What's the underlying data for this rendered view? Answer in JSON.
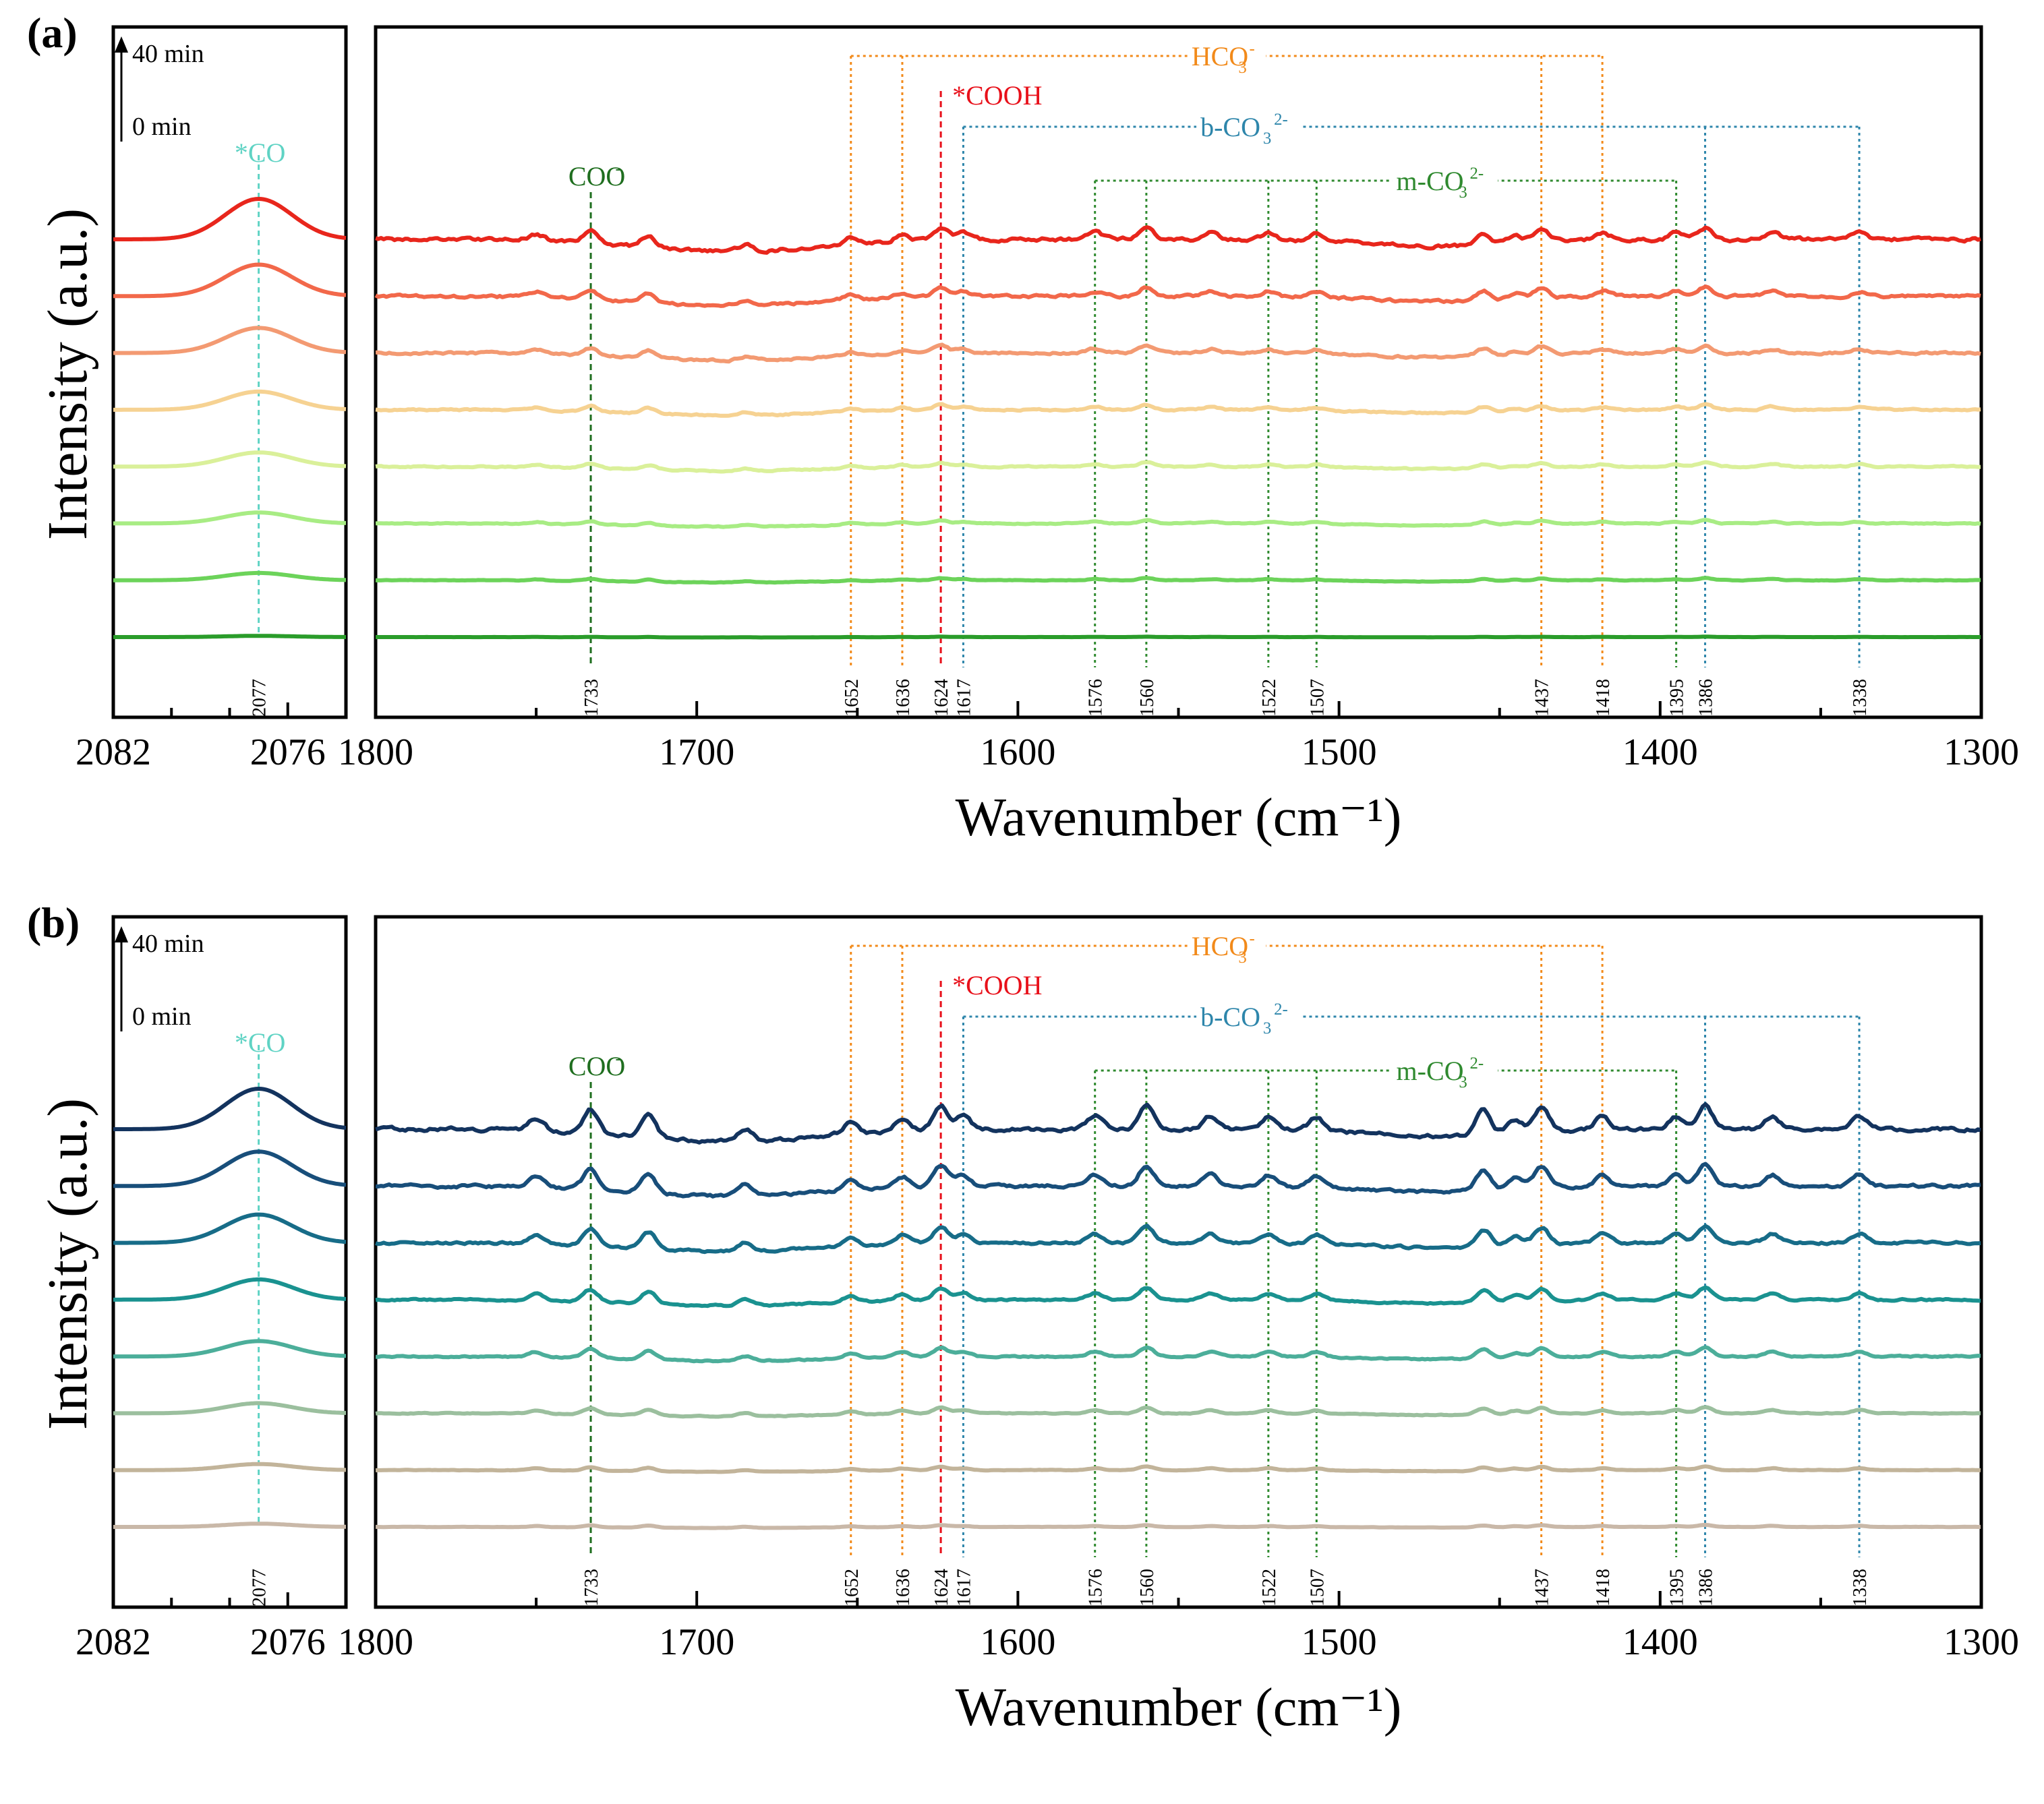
{
  "chart_data": [
    {
      "type": "line",
      "panel_label": "(a)",
      "title": "",
      "xlabel_main": "Wavenumber (cm⁻¹)",
      "ylabel": "Intensity (a.u.)",
      "time_arrow": {
        "top": "40 min",
        "bottom": "0 min"
      },
      "left_xlim": [
        2082,
        2074
      ],
      "left_ticks": [
        "2082",
        "2076"
      ],
      "xlim": [
        1800,
        1300
      ],
      "x_ticks": [
        "1800",
        "1700",
        "1600",
        "1500",
        "1400",
        "1300"
      ],
      "series_colors": [
        "#e8261c",
        "#f2684a",
        "#f39a72",
        "#f6d292",
        "#daf09a",
        "#a8ec84",
        "#6cd35a",
        "#2a9c2a"
      ],
      "series_amp": [
        1.0,
        0.78,
        0.62,
        0.45,
        0.35,
        0.27,
        0.18,
        0.03
      ],
      "peak_line": {
        "x": 2077,
        "label": "*CO",
        "color": "#5fd3c4"
      },
      "markers": [
        {
          "x": 1733,
          "label": "1733",
          "color": "#1f6e1f",
          "style": "dash",
          "top": "coo"
        },
        {
          "x": 1652,
          "label": "1652",
          "color": "#f28a1a",
          "style": "dot",
          "top": "hco3"
        },
        {
          "x": 1636,
          "label": "1636",
          "color": "#f28a1a",
          "style": "dot",
          "top": "hco3"
        },
        {
          "x": 1624,
          "label": "1624",
          "color": "#e8101a",
          "style": "dash",
          "top": "cooh"
        },
        {
          "x": 1617,
          "label": "1617",
          "color": "#2e86ab",
          "style": "dot",
          "top": "bco3"
        },
        {
          "x": 1576,
          "label": "1576",
          "color": "#2f8a2f",
          "style": "dot",
          "top": "mco3"
        },
        {
          "x": 1560,
          "label": "1560",
          "color": "#2f8a2f",
          "style": "dot",
          "top": "mco3"
        },
        {
          "x": 1522,
          "label": "1522",
          "color": "#2f8a2f",
          "style": "dot",
          "top": "mco3"
        },
        {
          "x": 1507,
          "label": "1507",
          "color": "#2f8a2f",
          "style": "dot",
          "top": "mco3"
        },
        {
          "x": 1437,
          "label": "1437",
          "color": "#f28a1a",
          "style": "dot",
          "top": "hco3"
        },
        {
          "x": 1418,
          "label": "1418",
          "color": "#f28a1a",
          "style": "dot",
          "top": "hco3"
        },
        {
          "x": 1395,
          "label": "1395",
          "color": "#2f8a2f",
          "style": "dot",
          "top": "mco3"
        },
        {
          "x": 1386,
          "label": "1386",
          "color": "#2e86ab",
          "style": "dot",
          "top": "bco3"
        },
        {
          "x": 1338,
          "label": "1338",
          "color": "#2e86ab",
          "style": "dot",
          "top": "bco3"
        }
      ],
      "co_label": "2077",
      "groups": [
        {
          "key": "hco3",
          "text": "HCO",
          "sub": "3",
          "sup": "-",
          "color": "#f28a1a",
          "from": 1652,
          "to": 1418
        },
        {
          "key": "bco3",
          "text": "b-CO",
          "sub": "3",
          "sup": "2-",
          "color": "#2e86ab",
          "from": 1617,
          "to": 1338
        },
        {
          "key": "mco3",
          "text": "m-CO",
          "sub": "3",
          "sup": "2-",
          "color": "#2f8a2f",
          "from": 1576,
          "to": 1395
        },
        {
          "key": "cooh",
          "text": "*COOH",
          "sub": "",
          "sup": "",
          "color": "#e8101a",
          "from": 1624,
          "to": 1624
        },
        {
          "key": "coo",
          "text": "COO",
          "sub": "",
          "sup": "-",
          "color": "#1f6e1f",
          "from": 1733,
          "to": 1733
        }
      ]
    },
    {
      "type": "line",
      "panel_label": "(b)",
      "title": "",
      "xlabel_main": "Wavenumber (cm⁻¹)",
      "ylabel": "Intensity (a.u.)",
      "time_arrow": {
        "top": "40 min",
        "bottom": "0 min"
      },
      "left_xlim": [
        2082,
        2074
      ],
      "left_ticks": [
        "2082",
        "2076"
      ],
      "xlim": [
        1800,
        1300
      ],
      "x_ticks": [
        "1800",
        "1700",
        "1600",
        "1500",
        "1400",
        "1300"
      ],
      "series_colors": [
        "#13335e",
        "#184e7a",
        "#176c88",
        "#1a9290",
        "#4cae9a",
        "#9bbf9e",
        "#c2b49a",
        "#c9b8a8"
      ],
      "series_amp": [
        1.0,
        0.85,
        0.7,
        0.5,
        0.38,
        0.25,
        0.15,
        0.08
      ],
      "peak_line": {
        "x": 2077,
        "label": "*CO",
        "color": "#5fd3c4"
      },
      "markers": [
        {
          "x": 1733,
          "label": "1733",
          "color": "#1f6e1f",
          "style": "dash",
          "top": "coo"
        },
        {
          "x": 1652,
          "label": "1652",
          "color": "#f28a1a",
          "style": "dot",
          "top": "hco3"
        },
        {
          "x": 1636,
          "label": "1636",
          "color": "#f28a1a",
          "style": "dot",
          "top": "hco3"
        },
        {
          "x": 1624,
          "label": "1624",
          "color": "#e8101a",
          "style": "dash",
          "top": "cooh"
        },
        {
          "x": 1617,
          "label": "1617",
          "color": "#2e86ab",
          "style": "dot",
          "top": "bco3"
        },
        {
          "x": 1576,
          "label": "1576",
          "color": "#2f8a2f",
          "style": "dot",
          "top": "mco3"
        },
        {
          "x": 1560,
          "label": "1560",
          "color": "#2f8a2f",
          "style": "dot",
          "top": "mco3"
        },
        {
          "x": 1522,
          "label": "1522",
          "color": "#2f8a2f",
          "style": "dot",
          "top": "mco3"
        },
        {
          "x": 1507,
          "label": "1507",
          "color": "#2f8a2f",
          "style": "dot",
          "top": "mco3"
        },
        {
          "x": 1437,
          "label": "1437",
          "color": "#f28a1a",
          "style": "dot",
          "top": "hco3"
        },
        {
          "x": 1418,
          "label": "1418",
          "color": "#f28a1a",
          "style": "dot",
          "top": "hco3"
        },
        {
          "x": 1395,
          "label": "1395",
          "color": "#2f8a2f",
          "style": "dot",
          "top": "mco3"
        },
        {
          "x": 1386,
          "label": "1386",
          "color": "#2e86ab",
          "style": "dot",
          "top": "bco3"
        },
        {
          "x": 1338,
          "label": "1338",
          "color": "#2e86ab",
          "style": "dot",
          "top": "bco3"
        }
      ],
      "co_label": "2077",
      "groups": [
        {
          "key": "hco3",
          "text": "HCO",
          "sub": "3",
          "sup": "-",
          "color": "#f28a1a",
          "from": 1652,
          "to": 1418
        },
        {
          "key": "bco3",
          "text": "b-CO",
          "sub": "3",
          "sup": "2-",
          "color": "#2e86ab",
          "from": 1617,
          "to": 1338
        },
        {
          "key": "mco3",
          "text": "m-CO",
          "sub": "3",
          "sup": "2-",
          "color": "#2f8a2f",
          "from": 1576,
          "to": 1395
        },
        {
          "key": "cooh",
          "text": "*COOH",
          "sub": "",
          "sup": "",
          "color": "#e8101a",
          "from": 1624,
          "to": 1624
        },
        {
          "key": "coo",
          "text": "COO",
          "sub": "",
          "sup": "-",
          "color": "#1f6e1f",
          "from": 1733,
          "to": 1733
        }
      ]
    }
  ]
}
